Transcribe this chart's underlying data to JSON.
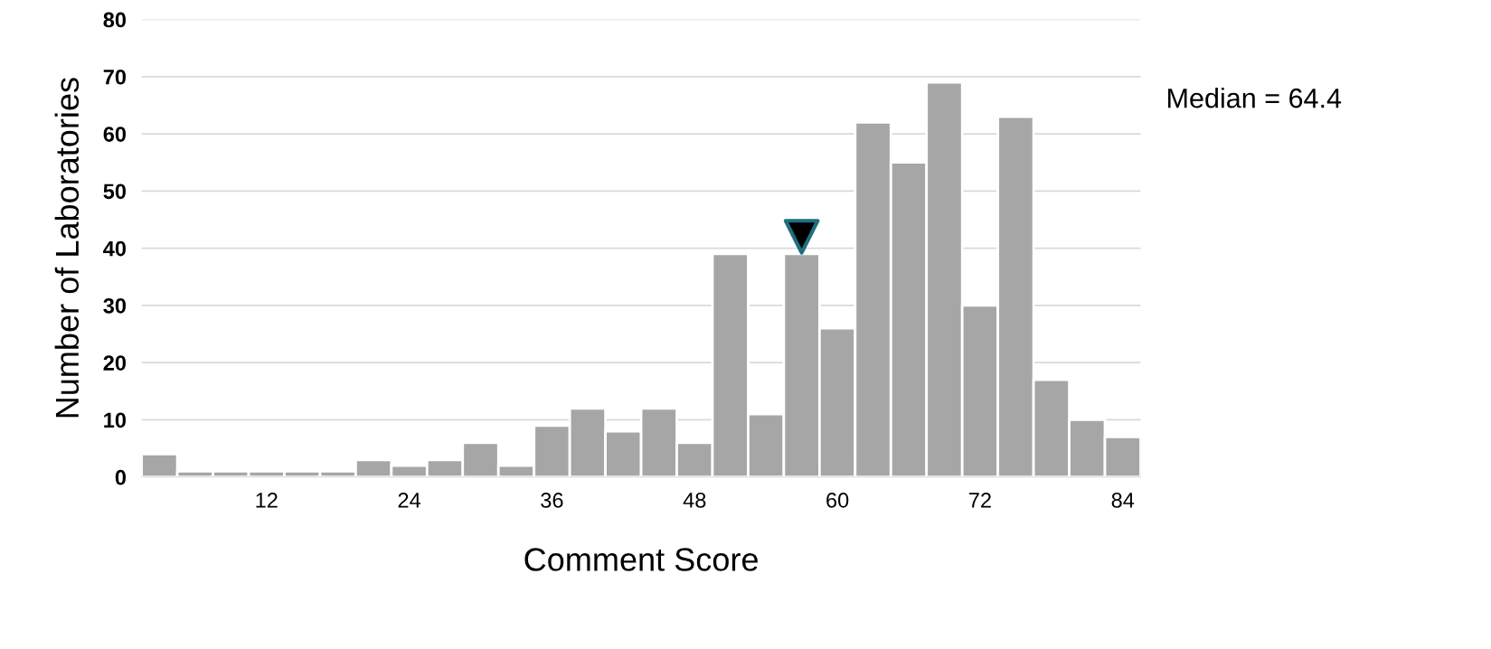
{
  "chart_data": {
    "type": "histogram",
    "xlabel": "Comment Score",
    "ylabel": "Number of Laboratories",
    "bins": [
      1.5,
      4.5,
      7.5,
      10.5,
      13.5,
      16.5,
      19.5,
      22.5,
      25.5,
      28.5,
      31.5,
      34.5,
      37.5,
      40.5,
      43.5,
      46.5,
      49.5,
      52.5,
      55.5,
      58.5,
      61.5,
      64.5,
      67.5,
      70.5,
      73.5,
      76.5,
      79.5,
      82.5,
      85.5
    ],
    "values": [
      4,
      1,
      1,
      1,
      1,
      1,
      3,
      2,
      3,
      6,
      2,
      9,
      12,
      8,
      12,
      6,
      39,
      11,
      39,
      26,
      62,
      55,
      69,
      30,
      63,
      17,
      10,
      7
    ],
    "color": "#a6a6a6",
    "series": [
      {
        "type": "scatter",
        "x": [
          57
        ],
        "values": [
          42
        ],
        "color": "#000000",
        "marker": "triangle"
      }
    ],
    "xlim": [
      1.5,
      85.5
    ],
    "ylim": [
      0,
      80
    ],
    "xticks": [
      12,
      24,
      36,
      48,
      60,
      72,
      84
    ],
    "yticks": [
      0,
      10,
      20,
      30,
      40,
      50,
      60,
      70,
      80
    ],
    "grid": "y",
    "annotations": [
      "Median = 64.4"
    ]
  }
}
